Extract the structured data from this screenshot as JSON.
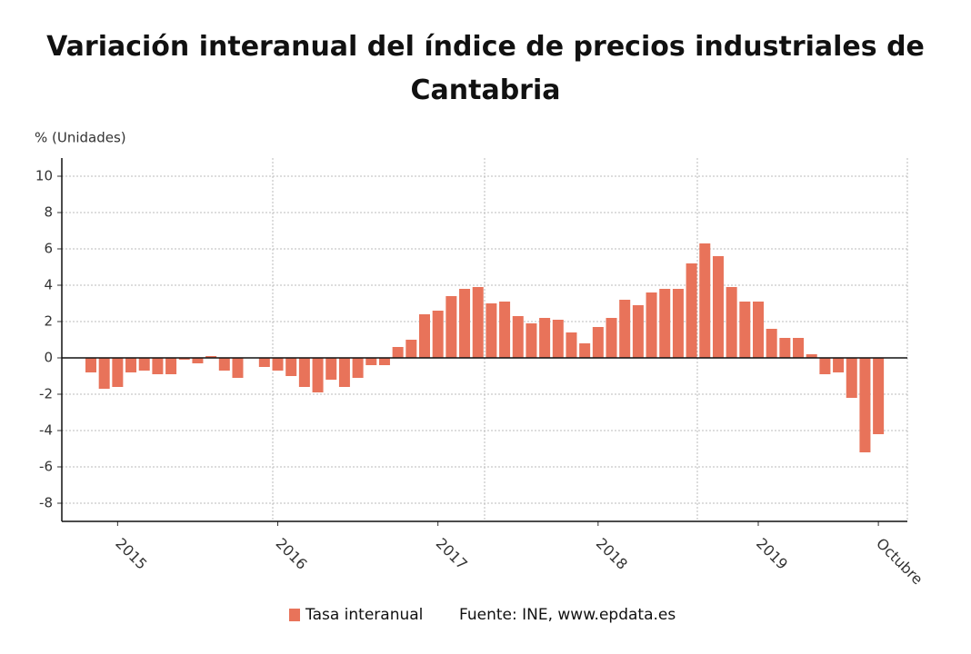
{
  "chart_data": {
    "type": "bar",
    "title": "Variación interanual del índice de precios industriales de Cantabria",
    "y_label": "% (Unidades)",
    "source": "Fuente: INE, www.epdata.es",
    "categories": [
      null,
      null,
      "2015",
      null,
      null,
      null,
      null,
      null,
      null,
      null,
      null,
      null,
      null,
      null,
      "2016",
      null,
      null,
      null,
      null,
      null,
      null,
      null,
      null,
      null,
      null,
      null,
      "2017",
      null,
      null,
      null,
      null,
      null,
      null,
      null,
      null,
      null,
      null,
      null,
      "2018",
      null,
      null,
      null,
      null,
      null,
      null,
      null,
      null,
      null,
      null,
      null,
      "2019",
      null,
      null,
      null,
      null,
      null,
      null,
      null,
      null,
      "Octubre"
    ],
    "series": [
      {
        "name": "Tasa interanual",
        "color": "#e8735a",
        "values": [
          -0.8,
          -1.7,
          -1.6,
          -0.8,
          -0.7,
          -0.9,
          -0.9,
          -0.1,
          -0.3,
          0.1,
          -0.7,
          -1.1,
          0,
          -0.5,
          -0.7,
          -1.0,
          -1.6,
          -1.9,
          -1.2,
          -1.6,
          -1.1,
          -0.4,
          -0.4,
          0.6,
          1.0,
          2.4,
          2.6,
          3.4,
          3.8,
          3.9,
          3.0,
          3.1,
          2.3,
          1.9,
          2.2,
          2.1,
          1.4,
          0.8,
          1.7,
          2.2,
          3.2,
          2.9,
          3.6,
          3.8,
          3.8,
          5.2,
          6.3,
          5.6,
          3.9,
          3.1,
          3.1,
          1.6,
          1.1,
          1.1,
          0.2,
          -0.9,
          -0.8,
          -2.2,
          -5.2,
          -4.2
        ]
      }
    ],
    "ylim": [
      -9,
      11
    ],
    "yticks": [
      -8,
      -6,
      -4,
      -2,
      0,
      2,
      4,
      6,
      8,
      10
    ],
    "grid": true
  }
}
